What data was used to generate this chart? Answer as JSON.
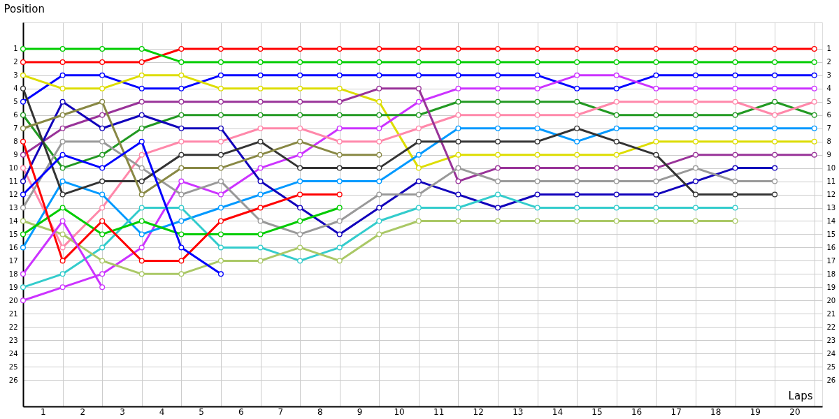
{
  "chart_data": {
    "type": "line",
    "xlabel": "Laps",
    "ylabel": "Position",
    "marker": "circle",
    "line_style": "solid",
    "grid": true,
    "xlim": [
      0,
      20.2
    ],
    "ylim": [
      28,
      -1
    ],
    "y2lim": [
      28,
      -1
    ],
    "xticks": [
      {
        "value": 0,
        "label": null
      },
      {
        "value": 0.5,
        "label": "1"
      },
      {
        "value": 1,
        "label": null
      },
      {
        "value": 1.5,
        "label": "2"
      },
      {
        "value": 2,
        "label": null
      },
      {
        "value": 2.5,
        "label": "3"
      },
      {
        "value": 3,
        "label": null
      },
      {
        "value": 3.5,
        "label": "4"
      },
      {
        "value": 4,
        "label": null
      },
      {
        "value": 4.5,
        "label": "5"
      },
      {
        "value": 5,
        "label": null
      },
      {
        "value": 5.5,
        "label": "6"
      },
      {
        "value": 6,
        "label": null
      },
      {
        "value": 6.5,
        "label": "7"
      },
      {
        "value": 7,
        "label": null
      },
      {
        "value": 7.5,
        "label": "8"
      },
      {
        "value": 8,
        "label": null
      },
      {
        "value": 8.5,
        "label": "9"
      },
      {
        "value": 9,
        "label": null
      },
      {
        "value": 9.5,
        "label": "10"
      },
      {
        "value": 10,
        "label": null
      },
      {
        "value": 10.5,
        "label": "11"
      },
      {
        "value": 11,
        "label": null
      },
      {
        "value": 11.5,
        "label": "12"
      },
      {
        "value": 12,
        "label": null
      },
      {
        "value": 12.5,
        "label": "13"
      },
      {
        "value": 13,
        "label": null
      },
      {
        "value": 13.5,
        "label": "14"
      },
      {
        "value": 14,
        "label": null
      },
      {
        "value": 14.5,
        "label": "15"
      },
      {
        "value": 15,
        "label": null
      },
      {
        "value": 15.5,
        "label": "16"
      },
      {
        "value": 16,
        "label": null
      },
      {
        "value": 16.5,
        "label": "17"
      },
      {
        "value": 17,
        "label": null
      },
      {
        "value": 17.5,
        "label": "18"
      },
      {
        "value": 18,
        "label": null
      },
      {
        "value": 18.5,
        "label": "19"
      },
      {
        "value": 19,
        "label": null
      },
      {
        "value": 19.5,
        "label": "20"
      },
      {
        "value": 20,
        "label": null
      }
    ],
    "yticks": [
      1,
      2,
      3,
      4,
      5,
      6,
      7,
      8,
      9,
      10,
      11,
      12,
      13,
      14,
      15,
      16,
      17,
      18,
      19,
      20,
      21,
      22,
      23,
      24,
      25,
      26
    ],
    "y2ticks": [
      1,
      2,
      3,
      4,
      5,
      6,
      7,
      8,
      9,
      10,
      11,
      12,
      13,
      14,
      15,
      16,
      17,
      18,
      19,
      20,
      21,
      22,
      23,
      24,
      25,
      26
    ],
    "series": [
      {
        "color": "#ff0000",
        "x": [
          0,
          1,
          2,
          3,
          4,
          5,
          6,
          7,
          8,
          9,
          10,
          11,
          12,
          13,
          14,
          15,
          16,
          17,
          18,
          19,
          20
        ],
        "values": [
          2,
          2,
          2,
          2,
          1,
          1,
          1,
          1,
          1,
          1,
          1,
          1,
          1,
          1,
          1,
          1,
          1,
          1,
          1,
          1,
          1
        ]
      },
      {
        "color": "#00cc00",
        "x": [
          0,
          1,
          2,
          3,
          4,
          5,
          6,
          7,
          8,
          9,
          10,
          11,
          12,
          13,
          14,
          15,
          16,
          17,
          18,
          19,
          20
        ],
        "values": [
          1,
          1,
          1,
          1,
          2,
          2,
          2,
          2,
          2,
          2,
          2,
          2,
          2,
          2,
          2,
          2,
          2,
          2,
          2,
          2,
          2
        ]
      },
      {
        "color": "#0000ff",
        "x": [
          0,
          1,
          2,
          3,
          4,
          5,
          6,
          7,
          8,
          9,
          10,
          11,
          12,
          13,
          14,
          15,
          16,
          17,
          18,
          19,
          20
        ],
        "values": [
          5,
          3,
          3,
          4,
          4,
          3,
          3,
          3,
          3,
          3,
          3,
          3,
          3,
          3,
          4,
          4,
          3,
          3,
          3,
          3,
          3
        ]
      },
      {
        "color": "#dddd00",
        "x": [
          0,
          1,
          2,
          3,
          4,
          5,
          6,
          7,
          8,
          9,
          10,
          11,
          12,
          13,
          14,
          15,
          16,
          17,
          18,
          19,
          20
        ],
        "values": [
          3,
          4,
          4,
          3,
          3,
          4,
          4,
          4,
          4,
          5,
          10,
          9,
          9,
          9,
          9,
          9,
          8,
          8,
          8,
          8,
          8
        ]
      },
      {
        "color": "#cc33ff",
        "x": [
          0,
          1,
          2,
          3,
          4,
          5,
          6,
          7,
          8,
          9,
          10,
          11,
          12,
          13,
          14,
          15,
          16,
          17,
          18,
          19,
          20
        ],
        "values": [
          20,
          19,
          18,
          16,
          11,
          12,
          10,
          9,
          7,
          7,
          5,
          4,
          4,
          4,
          3,
          3,
          4,
          4,
          4,
          4,
          4
        ]
      },
      {
        "color": "#229922",
        "x": [
          0,
          1,
          2,
          3,
          4,
          5,
          6,
          7,
          8,
          9,
          10,
          11,
          12,
          13,
          14,
          15,
          16,
          17,
          18,
          19,
          20
        ],
        "values": [
          6,
          10,
          9,
          7,
          6,
          6,
          6,
          6,
          6,
          6,
          6,
          5,
          5,
          5,
          5,
          6,
          6,
          6,
          6,
          5,
          6
        ]
      },
      {
        "color": "#ff88aa",
        "x": [
          0,
          1,
          2,
          3,
          4,
          5,
          6,
          7,
          8,
          9,
          10,
          11,
          12,
          13,
          14,
          15,
          16,
          17,
          18,
          19,
          20
        ],
        "values": [
          10,
          16,
          13,
          9,
          8,
          8,
          7,
          7,
          8,
          8,
          7,
          6,
          6,
          6,
          6,
          5,
          5,
          5,
          5,
          6,
          5
        ]
      },
      {
        "color": "#0099ff",
        "x": [
          0,
          1,
          2,
          3,
          4,
          5,
          6,
          7,
          8,
          9,
          10,
          11,
          12,
          13,
          14,
          15,
          16,
          17,
          18,
          19,
          20
        ],
        "values": [
          16,
          11,
          12,
          15,
          14,
          13,
          12,
          11,
          11,
          11,
          9,
          7,
          7,
          7,
          8,
          7,
          7,
          7,
          7,
          7,
          7
        ]
      },
      {
        "color": "#993399",
        "x": [
          0,
          1,
          2,
          3,
          4,
          5,
          6,
          7,
          8,
          9,
          10,
          11,
          12,
          13,
          14,
          15,
          16,
          17,
          18,
          19,
          20
        ],
        "values": [
          9,
          7,
          6,
          5,
          5,
          5,
          5,
          5,
          5,
          4,
          4,
          11,
          10,
          10,
          10,
          10,
          10,
          9,
          9,
          9,
          9
        ]
      },
      {
        "color": "#1100bb",
        "x": [
          0,
          1,
          2,
          3,
          4,
          5,
          6,
          7,
          8,
          9,
          10,
          11,
          12,
          13,
          14,
          15,
          16,
          17,
          18,
          19
        ],
        "values": [
          11,
          5,
          7,
          6,
          7,
          7,
          11,
          13,
          15,
          13,
          11,
          12,
          13,
          12,
          12,
          12,
          12,
          11,
          10,
          10
        ]
      },
      {
        "color": "#999999",
        "x": [
          0,
          1,
          2,
          3,
          4,
          5,
          6,
          7,
          8,
          9,
          10,
          11,
          12,
          13,
          14,
          15,
          16,
          17,
          18,
          19
        ],
        "values": [
          13,
          8,
          8,
          10,
          12,
          11,
          14,
          15,
          14,
          12,
          12,
          10,
          11,
          11,
          11,
          11,
          11,
          10,
          11,
          11
        ]
      },
      {
        "color": "#333333",
        "x": [
          0,
          1,
          2,
          3,
          4,
          5,
          6,
          7,
          8,
          9,
          10,
          11,
          12,
          13,
          14,
          15,
          16,
          17,
          18,
          19
        ],
        "values": [
          4,
          12,
          11,
          11,
          9,
          9,
          8,
          10,
          10,
          10,
          8,
          8,
          8,
          8,
          7,
          8,
          9,
          12,
          12,
          12
        ]
      },
      {
        "color": "#33cccc",
        "x": [
          0,
          1,
          2,
          3,
          4,
          5,
          6,
          7,
          8,
          9,
          10,
          11,
          12,
          13,
          14,
          15,
          16,
          17,
          18
        ],
        "values": [
          19,
          18,
          16,
          13,
          13,
          16,
          16,
          17,
          16,
          14,
          13,
          13,
          12,
          13,
          13,
          13,
          13,
          13,
          13
        ]
      },
      {
        "color": "#aac866",
        "x": [
          0,
          1,
          2,
          3,
          4,
          5,
          6,
          7,
          8,
          9,
          10,
          11,
          12,
          13,
          14,
          15,
          16,
          17,
          18
        ],
        "values": [
          14,
          15,
          17,
          18,
          18,
          17,
          17,
          16,
          17,
          15,
          14,
          14,
          14,
          14,
          14,
          14,
          14,
          14,
          14
        ]
      },
      {
        "color": "#888844",
        "x": [
          0,
          1,
          2,
          3,
          4,
          5,
          6,
          7,
          8,
          9
        ],
        "values": [
          7,
          6,
          5,
          12,
          10,
          10,
          9,
          8,
          9,
          9
        ]
      },
      {
        "color": "#00cc00",
        "x": [
          0,
          1,
          2,
          3,
          4,
          5,
          6,
          7,
          8
        ],
        "values": [
          15,
          13,
          15,
          14,
          15,
          15,
          15,
          14,
          13
        ]
      },
      {
        "color": "#ff0000",
        "x": [
          0,
          1,
          2,
          3,
          4,
          5,
          6,
          7,
          8
        ],
        "values": [
          8,
          17,
          14,
          17,
          17,
          14,
          13,
          12,
          12
        ]
      },
      {
        "color": "#0000ff",
        "x": [
          0,
          1,
          2,
          3,
          4,
          5
        ],
        "values": [
          12,
          9,
          10,
          8,
          16,
          18
        ]
      },
      {
        "color": "#cc33ff",
        "x": [
          0,
          1,
          2
        ],
        "values": [
          18,
          14,
          19
        ]
      }
    ]
  }
}
